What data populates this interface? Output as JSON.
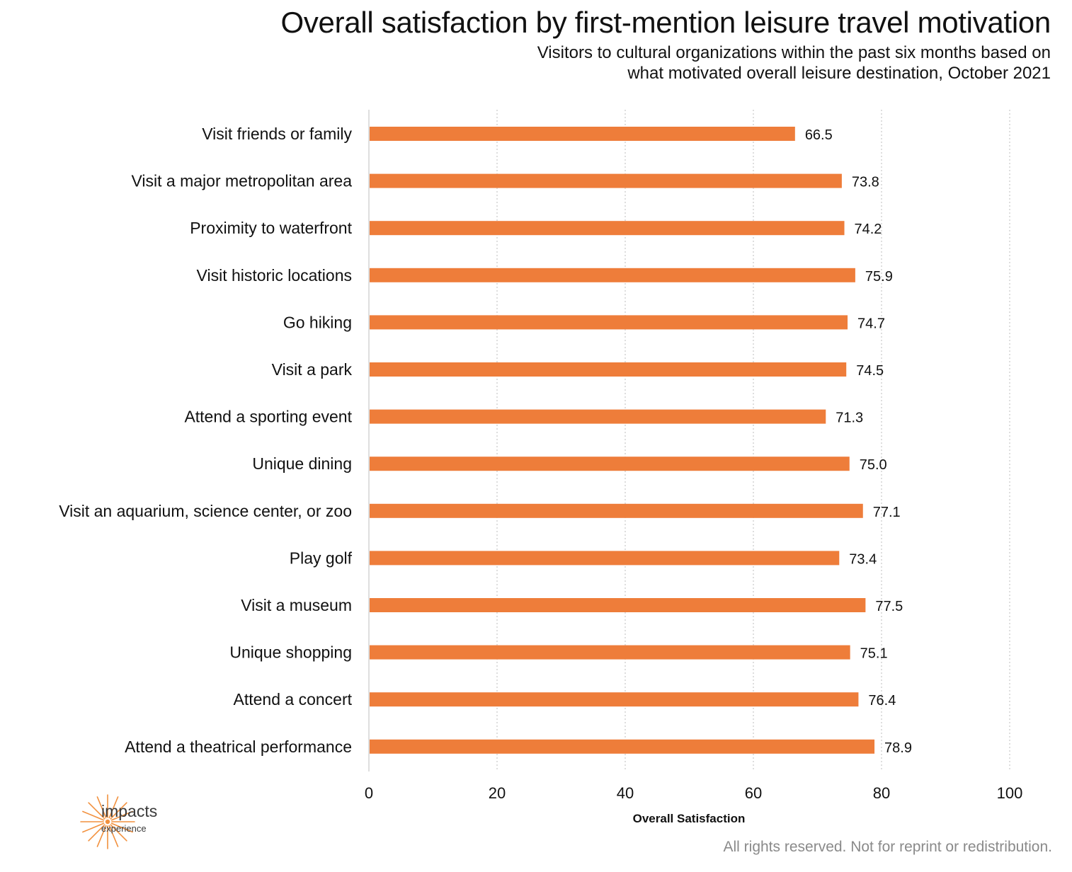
{
  "header": {
    "title": "Overall satisfaction by first-mention leisure travel motivation",
    "subtitle_line1": "Visitors to cultural organizations within the past six months based on",
    "subtitle_line2": "what motivated overall leisure destination, October 2021"
  },
  "logo": {
    "word": "impacts",
    "sub": "experience"
  },
  "footer": {
    "text": "All rights reserved. Not for reprint or redistribution."
  },
  "colors": {
    "bar": "#EE7D3A",
    "grid": "#BDBDBD",
    "logo": "#F2913E"
  },
  "chart_data": {
    "type": "bar",
    "orientation": "horizontal",
    "title": "Overall satisfaction by first-mention leisure travel motivation",
    "xlabel": "Overall Satisfaction",
    "ylabel": "",
    "xlim": [
      0,
      100
    ],
    "x_ticks": [
      0,
      20,
      40,
      60,
      80,
      100
    ],
    "grid": true,
    "legend": "none",
    "categories": [
      "Visit friends or family",
      "Visit a major metropolitan area",
      "Proximity to waterfront",
      "Visit historic locations",
      "Go hiking",
      "Visit a park",
      "Attend a sporting event",
      "Unique dining",
      "Visit an aquarium, science center, or zoo",
      "Play golf",
      "Visit a museum",
      "Unique shopping",
      "Attend a concert",
      "Attend a theatrical performance"
    ],
    "values": [
      66.5,
      73.8,
      74.2,
      75.9,
      74.7,
      74.5,
      71.3,
      75.0,
      77.1,
      73.4,
      77.5,
      75.1,
      76.4,
      78.9
    ]
  }
}
